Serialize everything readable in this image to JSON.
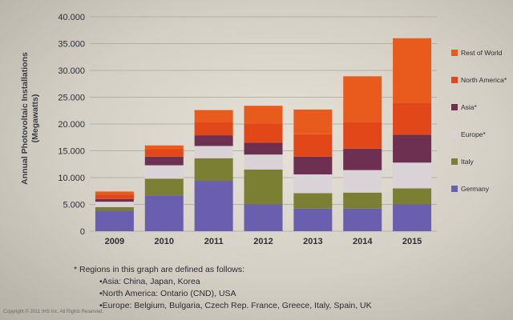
{
  "chart_data": {
    "type": "bar",
    "stacked": true,
    "ylabel": "Annual Photovoltaic Installations (Megawatts)",
    "categories": [
      "2009",
      "2010",
      "2011",
      "2012",
      "2013",
      "2014",
      "2015"
    ],
    "ylim": [
      0,
      40000
    ],
    "yticks": [
      "0",
      "5.000",
      "10.000",
      "15.000",
      "20.000",
      "25.000",
      "30.000",
      "35.000",
      "40.000"
    ],
    "ytick_values": [
      0,
      5000,
      10000,
      15000,
      20000,
      25000,
      30000,
      35000,
      40000
    ],
    "legend_position": "right",
    "grid": true,
    "series": [
      {
        "name": "Germany",
        "color": "#6a5fae",
        "values": [
          3800,
          6700,
          9400,
          5000,
          4200,
          4200,
          5000
        ]
      },
      {
        "name": "Italy",
        "color": "#7a7f33",
        "values": [
          700,
          3100,
          4200,
          6500,
          2900,
          3000,
          3000
        ]
      },
      {
        "name": "Europe*",
        "color": "#d9d2d6",
        "values": [
          1000,
          2500,
          2300,
          2800,
          3500,
          4200,
          4800
        ]
      },
      {
        "name": "Asia*",
        "color": "#6e3050",
        "values": [
          500,
          1600,
          2000,
          2200,
          3300,
          4000,
          5200
        ]
      },
      {
        "name": "North America*",
        "color": "#e2471a",
        "values": [
          800,
          1400,
          2400,
          3500,
          4200,
          5000,
          6000
        ]
      },
      {
        "name": "Rest of World",
        "color": "#e85b1c",
        "values": [
          600,
          700,
          2300,
          3400,
          4600,
          8500,
          12000
        ]
      }
    ]
  },
  "footnote": {
    "heading": "* Regions in this graph are defined as follows:",
    "lines": [
      "•Asia: China, Japan, Korea",
      "•North America: Ontario (CND), USA",
      "•Europe: Belgium, Bulgaria, Czech Rep. France, Greece, Italy, Spain, UK"
    ]
  },
  "copyright": "Copyright © 2011 IHS Inc. All Rights Reserved."
}
